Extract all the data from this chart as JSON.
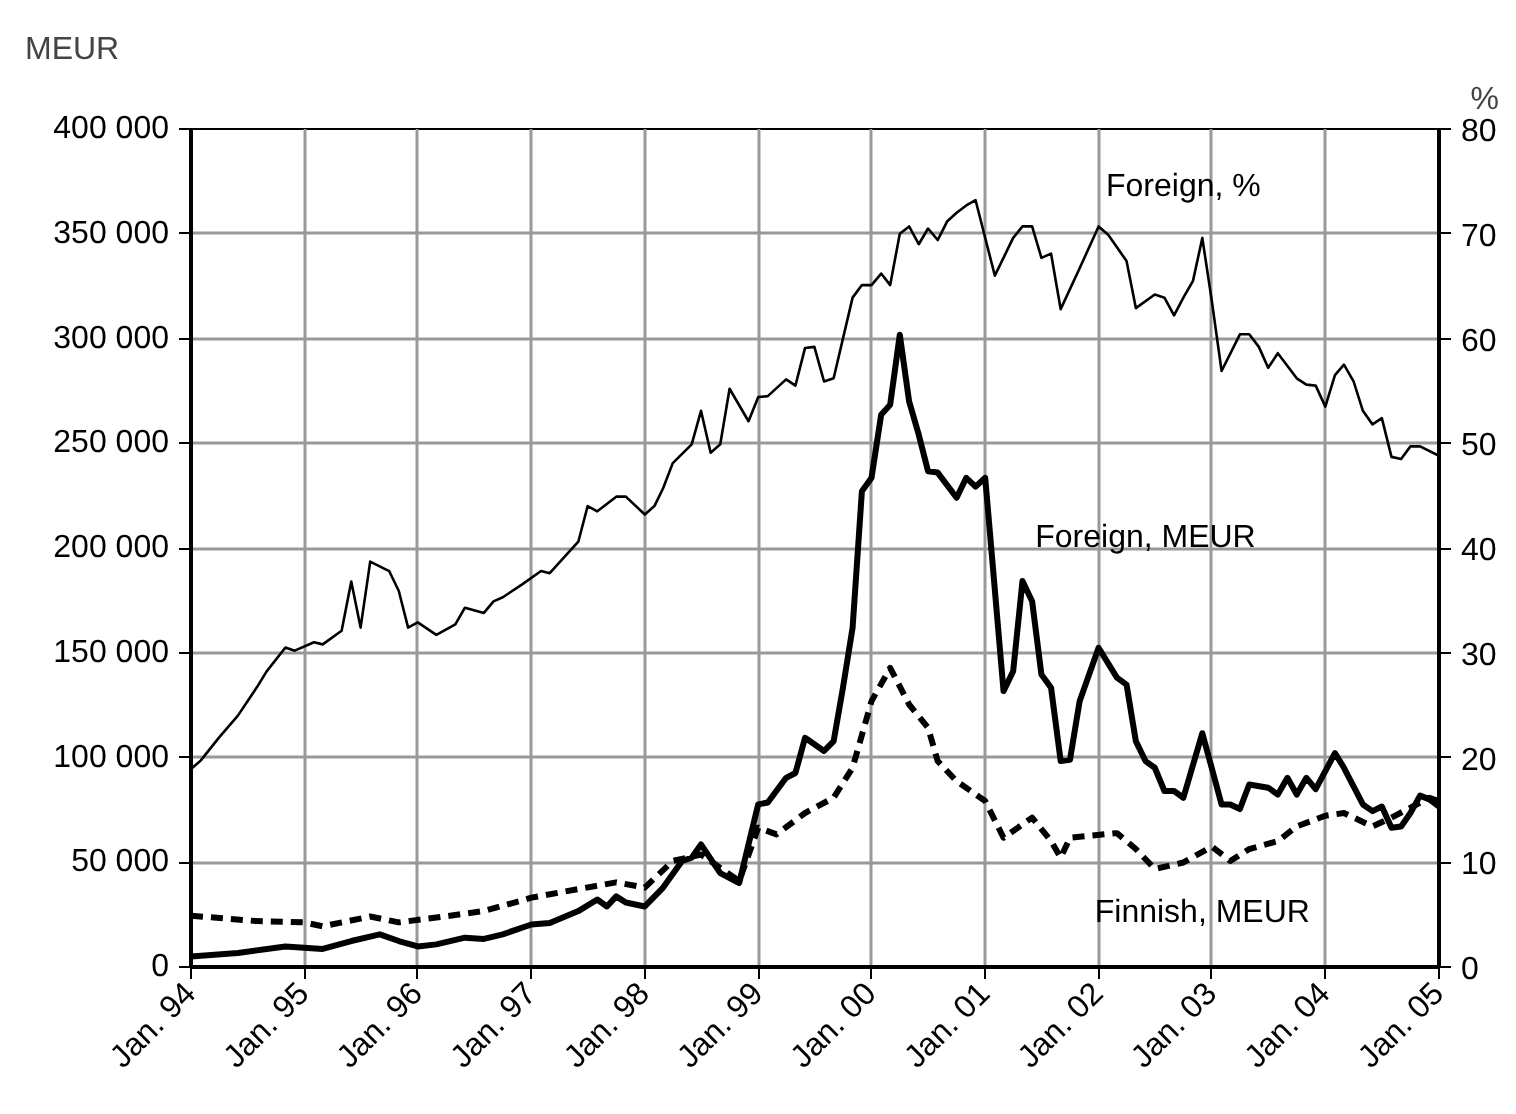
{
  "chart_data": {
    "type": "line",
    "ylabel": "MEUR",
    "y2label": "%",
    "grid": true,
    "xlim": [
      "1994-01",
      "2005-01"
    ],
    "xticks": [
      {
        "value": "1994-01",
        "label": "Jan. 94"
      },
      {
        "value": "1995-01",
        "label": "Jan. 95"
      },
      {
        "value": "1996-01",
        "label": "Jan. 96"
      },
      {
        "value": "1997-01",
        "label": "Jan. 97"
      },
      {
        "value": "1998-01",
        "label": "Jan. 98"
      },
      {
        "value": "1999-01",
        "label": "Jan. 99"
      },
      {
        "value": "2000-01",
        "label": "Jan. 00"
      },
      {
        "value": "2001-01",
        "label": "Jan. 01"
      },
      {
        "value": "2002-01",
        "label": "Jan. 02"
      },
      {
        "value": "2003-01",
        "label": "Jan. 03"
      },
      {
        "value": "2004-01",
        "label": "Jan. 04"
      },
      {
        "value": "2005-01",
        "label": "Jan. 05"
      }
    ],
    "ylim": [
      0,
      400000
    ],
    "yticks": [
      {
        "value": 0,
        "label": "0"
      },
      {
        "value": 50000,
        "label": "50 000"
      },
      {
        "value": 100000,
        "label": "100 000"
      },
      {
        "value": 150000,
        "label": "150 000"
      },
      {
        "value": 200000,
        "label": "200 000"
      },
      {
        "value": 250000,
        "label": "250 000"
      },
      {
        "value": 300000,
        "label": "300 000"
      },
      {
        "value": 350000,
        "label": "350 000"
      },
      {
        "value": 400000,
        "label": "400 000"
      }
    ],
    "y2lim": [
      0,
      80
    ],
    "y2ticks": [
      0,
      10,
      20,
      30,
      40,
      50,
      60,
      70,
      80
    ],
    "series": [
      {
        "name": "Foreign, %",
        "color": "#000000",
        "axis": "y2",
        "line_style": "solid",
        "x": [
          "1994-01",
          "1994-02",
          "1994-04",
          "1994-06",
          "1994-08",
          "1994-09",
          "1994-11",
          "1994-12",
          "1995-02",
          "1995-03",
          "1995-05",
          "1995-06",
          "1995-07",
          "1995-08",
          "1995-10",
          "1995-11",
          "1995-12",
          "1996-01",
          "1996-03",
          "1996-05",
          "1996-06",
          "1996-08",
          "1996-09",
          "1996-10",
          "1996-12",
          "1997-02",
          "1997-03",
          "1997-06",
          "1997-07",
          "1997-08",
          "1997-10",
          "1997-11",
          "1998-01",
          "1998-02",
          "1998-03",
          "1998-04",
          "1998-06",
          "1998-07",
          "1998-08",
          "1998-09",
          "1998-10",
          "1998-12",
          "1999-01",
          "1999-02",
          "1999-04",
          "1999-05",
          "1999-06",
          "1999-07",
          "1999-08",
          "1999-09",
          "1999-11",
          "1999-12",
          "2000-01",
          "2000-02",
          "2000-03",
          "2000-04",
          "2000-05",
          "2000-06",
          "2000-07",
          "2000-08",
          "2000-09",
          "2000-10",
          "2000-11",
          "2000-12",
          "2001-02",
          "2001-04",
          "2001-05",
          "2001-06",
          "2001-07",
          "2001-08",
          "2001-09",
          "2001-11",
          "2002-01",
          "2002-02",
          "2002-04",
          "2002-05",
          "2002-07",
          "2002-08",
          "2002-09",
          "2002-10",
          "2002-11",
          "2002-12",
          "2003-01",
          "2003-02",
          "2003-04",
          "2003-05",
          "2003-06",
          "2003-07",
          "2003-08",
          "2003-10",
          "2003-11",
          "2003-12",
          "2004-01",
          "2004-02",
          "2004-03",
          "2004-04",
          "2004-05",
          "2004-06",
          "2004-07",
          "2004-08",
          "2004-09",
          "2004-10",
          "2004-11",
          "2005-01"
        ],
        "values": [
          18.9,
          19.7,
          21.9,
          24.0,
          26.7,
          28.2,
          30.5,
          30.2,
          31.0,
          30.8,
          32.1,
          36.8,
          32.4,
          38.7,
          37.8,
          35.9,
          32.4,
          32.9,
          31.7,
          32.7,
          34.3,
          33.8,
          34.9,
          35.3,
          36.5,
          37.8,
          37.6,
          40.6,
          44.0,
          43.5,
          44.9,
          44.9,
          43.2,
          44.0,
          45.7,
          48.1,
          49.9,
          53.1,
          49.1,
          49.9,
          55.2,
          52.1,
          54.4,
          54.5,
          56.1,
          55.5,
          59.1,
          59.2,
          55.9,
          56.2,
          63.9,
          65.1,
          65.1,
          66.2,
          65.1,
          70.0,
          70.7,
          69.0,
          70.5,
          69.4,
          71.2,
          72.0,
          72.7,
          73.2,
          66.0,
          69.6,
          70.7,
          70.7,
          67.7,
          68.1,
          62.8,
          66.7,
          70.7,
          69.9,
          67.4,
          62.9,
          64.2,
          63.9,
          62.2,
          63.9,
          65.5,
          69.6,
          63.5,
          56.9,
          60.4,
          60.4,
          59.2,
          57.2,
          58.6,
          56.2,
          55.6,
          55.5,
          53.5,
          56.5,
          57.5,
          55.9,
          53.1,
          51.8,
          52.4,
          48.7,
          48.5,
          49.7,
          49.7,
          48.8
        ]
      },
      {
        "name": "Foreign, MEUR",
        "color": "#000000",
        "line_style": "solid",
        "x": [
          "1994-01",
          "1994-06",
          "1994-11",
          "1995-03",
          "1995-06",
          "1995-09",
          "1995-11",
          "1996-01",
          "1996-03",
          "1996-06",
          "1996-08",
          "1996-10",
          "1997-01",
          "1997-03",
          "1997-06",
          "1997-08",
          "1997-09",
          "1997-10",
          "1997-11",
          "1998-01",
          "1998-03",
          "1998-05",
          "1998-06",
          "1998-07",
          "1998-09",
          "1998-11",
          "1999-01",
          "1999-02",
          "1999-04",
          "1999-05",
          "1999-06",
          "1999-08",
          "1999-09",
          "1999-10",
          "1999-11",
          "1999-12",
          "2000-01",
          "2000-02",
          "2000-03",
          "2000-04",
          "2000-05",
          "2000-06",
          "2000-07",
          "2000-08",
          "2000-10",
          "2000-11",
          "2000-12",
          "2001-01",
          "2001-03",
          "2001-04",
          "2001-05",
          "2001-06",
          "2001-07",
          "2001-08",
          "2001-09",
          "2001-10",
          "2001-11",
          "2002-01",
          "2002-03",
          "2002-04",
          "2002-05",
          "2002-06",
          "2002-07",
          "2002-08",
          "2002-09",
          "2002-10",
          "2002-12",
          "2003-02",
          "2003-03",
          "2003-04",
          "2003-05",
          "2003-07",
          "2003-08",
          "2003-09",
          "2003-10",
          "2003-11",
          "2003-12",
          "2004-02",
          "2004-03",
          "2004-05",
          "2004-06",
          "2004-07",
          "2004-08",
          "2004-09",
          "2004-10",
          "2004-11",
          "2004-12",
          "2005-01"
        ],
        "values": [
          5000,
          6700,
          9800,
          8600,
          12400,
          15600,
          12400,
          9800,
          10800,
          14000,
          13400,
          15600,
          20300,
          21000,
          26700,
          32200,
          28900,
          33700,
          30800,
          28900,
          37900,
          50600,
          52200,
          58500,
          44800,
          40100,
          77600,
          78500,
          90300,
          92600,
          109400,
          103100,
          107800,
          133300,
          161900,
          227100,
          233500,
          263600,
          268400,
          301800,
          270000,
          254100,
          236600,
          236000,
          224000,
          233500,
          229300,
          233500,
          131700,
          141200,
          184200,
          174600,
          139600,
          133300,
          98300,
          98900,
          126900,
          152400,
          138100,
          134800,
          107800,
          98300,
          95100,
          84000,
          84000,
          80800,
          111600,
          77600,
          77600,
          75400,
          87100,
          85600,
          82300,
          90300,
          82300,
          90300,
          84900,
          102100,
          95100,
          77600,
          74400,
          76600,
          66500,
          67100,
          73500,
          81800,
          80000,
          76600
        ]
      },
      {
        "name": "Finnish, MEUR",
        "color": "#000000",
        "line_style": "dashed",
        "x": [
          "1994-01",
          "1994-08",
          "1995-01",
          "1995-03",
          "1995-08",
          "1995-11",
          "1996-03",
          "1996-08",
          "1997-01",
          "1997-06",
          "1997-10",
          "1998-01",
          "1998-04",
          "1998-07",
          "1998-11",
          "1999-01",
          "1999-03",
          "1999-06",
          "1999-09",
          "1999-11",
          "2000-01",
          "2000-03",
          "2000-05",
          "2000-07",
          "2000-08",
          "2000-10",
          "2001-01",
          "2001-03",
          "2001-06",
          "2001-08",
          "2001-09",
          "2001-10",
          "2002-03",
          "2002-05",
          "2002-07",
          "2002-10",
          "2003-01",
          "2003-03",
          "2003-05",
          "2003-08",
          "2003-10",
          "2004-01",
          "2004-03",
          "2004-06",
          "2004-08",
          "2004-12",
          "2005-01"
        ],
        "values": [
          24500,
          21900,
          21300,
          19400,
          24100,
          21300,
          23600,
          26700,
          33100,
          37200,
          40400,
          37900,
          50600,
          53700,
          41000,
          66500,
          63300,
          73500,
          80800,
          95100,
          126900,
          142800,
          125300,
          114200,
          98300,
          88700,
          79200,
          61700,
          71300,
          60100,
          52200,
          61700,
          63900,
          56300,
          46800,
          49900,
          57500,
          50600,
          56300,
          60100,
          67100,
          72200,
          73500,
          67100,
          71300,
          80800,
          79200
        ]
      }
    ]
  }
}
